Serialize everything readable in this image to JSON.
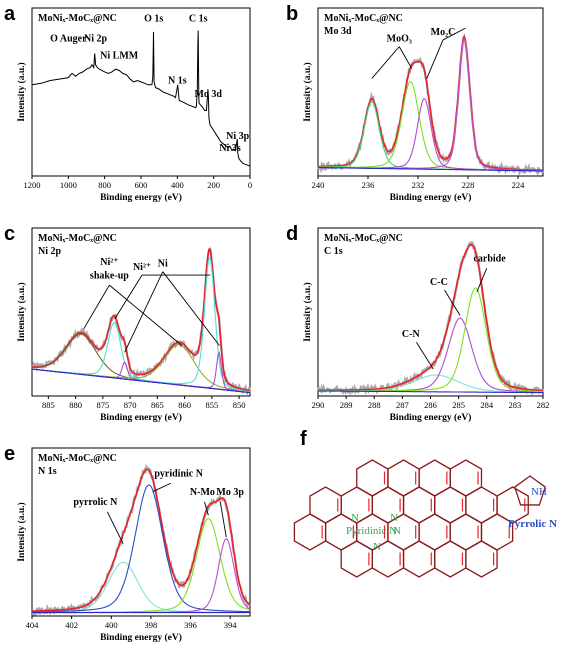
{
  "figure": {
    "labels": [
      "a",
      "b",
      "c",
      "d",
      "e",
      "f"
    ]
  },
  "chart_data": [
    {
      "id": "a",
      "type": "line",
      "title": "MoNiₓ-MoCₓ@NC",
      "subtitle": "",
      "xlabel": "Binding energy (eV)",
      "ylabel": "Intensity (a.u.)",
      "xlim": [
        1200,
        0
      ],
      "xticks": [
        1200,
        1000,
        800,
        600,
        400,
        200,
        0
      ],
      "annotations": [
        {
          "text": "O Auger",
          "x": 1000,
          "y": 0.8
        },
        {
          "text": "Ni 2p",
          "x": 850,
          "y": 0.8
        },
        {
          "text": "Ni LMM",
          "x": 720,
          "y": 0.7
        },
        {
          "text": "O 1s",
          "x": 530,
          "y": 0.92
        },
        {
          "text": "C 1s",
          "x": 285,
          "y": 0.92
        },
        {
          "text": "N 1s",
          "x": 400,
          "y": 0.55
        },
        {
          "text": "Mo 3d",
          "x": 230,
          "y": 0.47
        },
        {
          "text": "Ni 3p",
          "x": 68,
          "y": 0.22
        },
        {
          "text": "Ni 3s",
          "x": 110,
          "y": 0.15
        }
      ],
      "series": [
        {
          "name": "survey",
          "color": "#000000",
          "x": [
            1200,
            1150,
            1100,
            1050,
            1000,
            980,
            960,
            940,
            920,
            900,
            880,
            870,
            860,
            855,
            850,
            840,
            830,
            800,
            780,
            760,
            740,
            720,
            700,
            680,
            660,
            640,
            620,
            600,
            580,
            560,
            540,
            535,
            531,
            528,
            520,
            500,
            480,
            460,
            420,
            410,
            402,
            398,
            390,
            370,
            340,
            320,
            300,
            295,
            290,
            287,
            285,
            282,
            280,
            260,
            250,
            240,
            235,
            232,
            229,
            226,
            220,
            200,
            180,
            160,
            140,
            120,
            110,
            100,
            90,
            80,
            70,
            67,
            60,
            40,
            20,
            0
          ],
          "y": [
            0.58,
            0.59,
            0.61,
            0.62,
            0.63,
            0.66,
            0.64,
            0.66,
            0.67,
            0.69,
            0.7,
            0.72,
            0.7,
            0.8,
            0.72,
            0.7,
            0.69,
            0.67,
            0.66,
            0.67,
            0.69,
            0.68,
            0.66,
            0.65,
            0.62,
            0.6,
            0.61,
            0.6,
            0.59,
            0.58,
            0.58,
            0.63,
            0.95,
            0.6,
            0.56,
            0.55,
            0.53,
            0.52,
            0.5,
            0.49,
            0.55,
            0.58,
            0.47,
            0.46,
            0.44,
            0.43,
            0.42,
            0.43,
            0.55,
            0.88,
            0.96,
            0.5,
            0.45,
            0.42,
            0.4,
            0.4,
            0.48,
            0.55,
            0.5,
            0.35,
            0.3,
            0.26,
            0.22,
            0.18,
            0.16,
            0.14,
            0.15,
            0.12,
            0.13,
            0.12,
            0.2,
            0.1,
            0.06,
            0.03,
            0.02,
            0.01
          ]
        }
      ]
    },
    {
      "id": "b",
      "type": "line",
      "title": "MoNiₓ-MoCₓ@NC",
      "subtitle": "Mo 3d",
      "xlabel": "Binding energy (eV)",
      "ylabel": "Intensity (a.u.)",
      "xlim": [
        240,
        222
      ],
      "xticks": [
        240,
        236,
        232,
        228,
        224
      ],
      "annotations": [
        {
          "text": "MoO₃",
          "x": 233.5,
          "y": 0.8
        },
        {
          "text": "Mo₂C",
          "x": 230.0,
          "y": 0.84
        }
      ],
      "arrows": [
        {
          "from": [
            233.5,
            0.77
          ],
          "to": [
            235.7,
            0.58
          ]
        },
        {
          "from": [
            233.5,
            0.77
          ],
          "to": [
            232.5,
            0.64
          ]
        },
        {
          "from": [
            230.0,
            0.81
          ],
          "to": [
            231.3,
            0.58
          ]
        },
        {
          "from": [
            230.0,
            0.81
          ],
          "to": [
            228.2,
            0.88
          ]
        }
      ],
      "series": [
        {
          "name": "raw",
          "color": "#aaaaaa",
          "kind": "raw"
        },
        {
          "name": "fit",
          "color": "#e8212b",
          "kind": "sum"
        },
        {
          "name": "comp1",
          "color": "#36d67a",
          "kind": "peak",
          "center": 235.7,
          "height": 0.4,
          "width": 0.6
        },
        {
          "name": "comp2",
          "color": "#7de21c",
          "kind": "peak",
          "center": 232.6,
          "height": 0.52,
          "width": 0.7
        },
        {
          "name": "comp3",
          "color": "#b24bd1",
          "kind": "peak",
          "center": 231.5,
          "height": 0.42,
          "width": 0.55
        },
        {
          "name": "comp4",
          "color": "#c04bd8",
          "kind": "peak",
          "center": 228.3,
          "height": 0.78,
          "width": 0.45
        },
        {
          "name": "background",
          "color": "#2a2ac8",
          "kind": "bg",
          "values": [
            0.05,
            0.03
          ]
        }
      ]
    },
    {
      "id": "c",
      "type": "line",
      "title": "MoNiₓ-MoCₓ@NC",
      "subtitle": "Ni 2p",
      "xlabel": "Binding energy (eV)",
      "ylabel": "Intensity (a.u.)",
      "xlim": [
        888,
        848
      ],
      "xticks": [
        885,
        880,
        875,
        870,
        865,
        860,
        855,
        850
      ],
      "annotations": [
        {
          "text": "Ni²⁺",
          "x": 873.8,
          "y": 0.78
        },
        {
          "text": "shake-up",
          "x": 873.8,
          "y": 0.7
        },
        {
          "text": "Ni²⁺",
          "x": 867.8,
          "y": 0.75
        },
        {
          "text": "Ni",
          "x": 864.0,
          "y": 0.77
        }
      ],
      "arrows": [
        {
          "from": [
            873.8,
            0.66
          ],
          "to": [
            878.5,
            0.4
          ]
        },
        {
          "from": [
            873.8,
            0.66
          ],
          "to": [
            860.5,
            0.3
          ]
        },
        {
          "from": [
            867.8,
            0.72
          ],
          "to": [
            872.8,
            0.46
          ]
        },
        {
          "from": [
            867.8,
            0.72
          ],
          "to": [
            855.3,
            0.72
          ]
        },
        {
          "from": [
            864.0,
            0.74
          ],
          "to": [
            871.0,
            0.26
          ]
        },
        {
          "from": [
            864.0,
            0.74
          ],
          "to": [
            853.6,
            0.3
          ]
        }
      ],
      "series": [
        {
          "name": "raw",
          "color": "#aaaaaa",
          "kind": "raw"
        },
        {
          "name": "fit",
          "color": "#e8212b",
          "kind": "sum"
        },
        {
          "name": "sat1",
          "color": "#6b6b2a",
          "kind": "peak",
          "center": 879.0,
          "height": 0.24,
          "width": 2.8
        },
        {
          "name": "sat2",
          "color": "#8fae3a",
          "kind": "peak",
          "center": 861.0,
          "height": 0.24,
          "width": 2.8
        },
        {
          "name": "ni2-a",
          "color": "#4fe0d8",
          "kind": "peak",
          "center": 872.9,
          "height": 0.33,
          "width": 1.2
        },
        {
          "name": "ni2-b",
          "color": "#4fe0d8",
          "kind": "peak",
          "center": 855.4,
          "height": 0.78,
          "width": 0.95
        },
        {
          "name": "ni0-a",
          "color": "#b24bd1",
          "kind": "peak",
          "center": 871.0,
          "height": 0.1,
          "width": 0.5
        },
        {
          "name": "ni0-b",
          "color": "#b24bd1",
          "kind": "peak",
          "center": 853.7,
          "height": 0.22,
          "width": 0.45
        },
        {
          "name": "background",
          "color": "#2a2ac8",
          "kind": "bg",
          "values": [
            0.16,
            0.02
          ]
        }
      ]
    },
    {
      "id": "d",
      "type": "line",
      "title": "MoNiₓ-MoCₓ@NC",
      "subtitle": "C 1s",
      "xlabel": "Binding energy (eV)",
      "ylabel": "Intensity (a.u.)",
      "xlim": [
        290,
        282
      ],
      "xticks": [
        290,
        289,
        288,
        287,
        286,
        285,
        284,
        283,
        282
      ],
      "annotations": [
        {
          "text": "carbide",
          "x": 283.9,
          "y": 0.8
        },
        {
          "text": "C-C",
          "x": 285.7,
          "y": 0.66
        },
        {
          "text": "C-N",
          "x": 286.7,
          "y": 0.35
        }
      ],
      "arrows": [
        {
          "from": [
            284.0,
            0.76
          ],
          "to": [
            284.35,
            0.62
          ]
        },
        {
          "from": [
            285.5,
            0.63
          ],
          "to": [
            284.95,
            0.48
          ]
        },
        {
          "from": [
            286.5,
            0.32
          ],
          "to": [
            285.9,
            0.16
          ]
        }
      ],
      "series": [
        {
          "name": "raw",
          "color": "#aaaaaa",
          "kind": "raw"
        },
        {
          "name": "fit",
          "color": "#e8212b",
          "kind": "sum"
        },
        {
          "name": "comp-cn",
          "color": "#7de4d4",
          "kind": "peak",
          "center": 285.8,
          "height": 0.1,
          "width": 0.8
        },
        {
          "name": "comp-cc",
          "color": "#b24bd1",
          "kind": "peak",
          "center": 284.95,
          "height": 0.44,
          "width": 0.42
        },
        {
          "name": "comp-carbide",
          "color": "#7de21c",
          "kind": "peak",
          "center": 284.4,
          "height": 0.62,
          "width": 0.38
        },
        {
          "name": "background",
          "color": "#2a2ac8",
          "kind": "bg",
          "values": [
            0.03,
            0.02
          ]
        }
      ]
    },
    {
      "id": "e",
      "type": "line",
      "title": "MoNiₓ-MoCₓ@NC",
      "subtitle": "N 1s",
      "xlabel": "Binding energy (eV)",
      "ylabel": "Intensity (a.u.)",
      "xlim": [
        404,
        393
      ],
      "xticks": [
        404,
        402,
        400,
        398,
        396,
        394
      ],
      "annotations": [
        {
          "text": "pyrrolic N",
          "x": 400.8,
          "y": 0.66
        },
        {
          "text": "pyridinic N",
          "x": 396.6,
          "y": 0.83
        },
        {
          "text": "N-Mo",
          "x": 395.4,
          "y": 0.72
        },
        {
          "text": "Mo 3p",
          "x": 394.0,
          "y": 0.72
        }
      ],
      "arrows": [
        {
          "from": [
            400.2,
            0.62
          ],
          "to": [
            399.4,
            0.43
          ]
        },
        {
          "from": [
            397.0,
            0.79
          ],
          "to": [
            397.9,
            0.74
          ]
        },
        {
          "from": [
            395.3,
            0.68
          ],
          "to": [
            395.1,
            0.6
          ]
        },
        {
          "from": [
            394.5,
            0.68
          ],
          "to": [
            394.2,
            0.47
          ]
        }
      ],
      "series": [
        {
          "name": "raw",
          "color": "#aaaaaa",
          "kind": "raw"
        },
        {
          "name": "fit",
          "color": "#e8212b",
          "kind": "sum"
        },
        {
          "name": "comp-pyrrolic",
          "color": "#7de4d4",
          "kind": "peak",
          "center": 399.4,
          "height": 0.3,
          "width": 0.75
        },
        {
          "name": "comp-pyridinic",
          "color": "#2d4cc8",
          "kind": "peak",
          "center": 398.1,
          "height": 0.76,
          "width": 0.7
        },
        {
          "name": "comp-nmo",
          "color": "#7de21c",
          "kind": "peak",
          "center": 395.1,
          "height": 0.56,
          "width": 0.6
        },
        {
          "name": "comp-mo3p",
          "color": "#c04bd8",
          "kind": "peak",
          "center": 394.2,
          "height": 0.44,
          "width": 0.4
        },
        {
          "name": "background",
          "color": "#2a2ac8",
          "kind": "bg",
          "values": [
            0.02,
            0.02
          ]
        }
      ]
    }
  ],
  "structure": {
    "id": "f",
    "labels": {
      "n_top1": "N",
      "n_top2": "N",
      "n_left": "N",
      "pyridinic": "Pyridinic N",
      "n_bottom": "N",
      "nh": "NH",
      "pyrrolic": "Pyrrolic N"
    },
    "colors": {
      "bond": "#8b1a1a",
      "double": "#e8212b",
      "green": "#3aa655",
      "blue": "#2d4cc8"
    }
  }
}
